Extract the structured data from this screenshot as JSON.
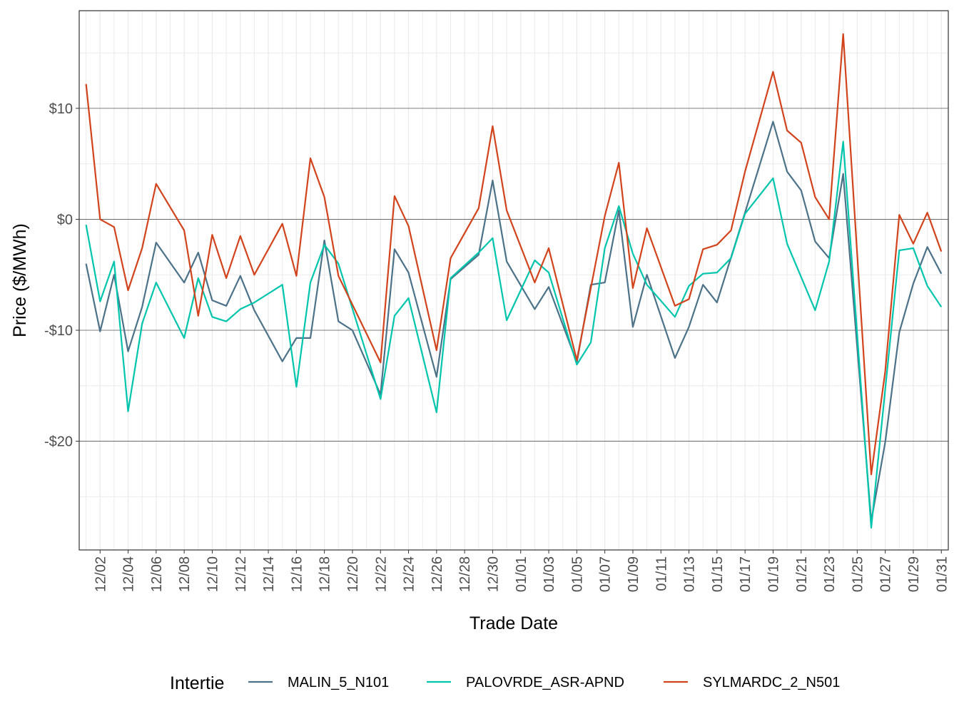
{
  "chart_data": {
    "type": "line",
    "xlabel": "Trade Date",
    "ylabel": "Price ($/MWh)",
    "ylim": [
      -29.8,
      18.8
    ],
    "y_ticks": [
      10,
      0,
      -10,
      -20
    ],
    "y_tick_labels": [
      "$10",
      "$0",
      "-$10",
      "-$20"
    ],
    "x_tick_labels": [
      "12/02",
      "12/04",
      "12/06",
      "12/08",
      "12/10",
      "12/12",
      "12/14",
      "12/16",
      "12/18",
      "12/20",
      "12/22",
      "12/24",
      "12/26",
      "12/28",
      "12/30",
      "01/01",
      "01/03",
      "01/05",
      "01/07",
      "01/09",
      "01/11",
      "01/13",
      "01/15",
      "01/17",
      "01/19",
      "01/21",
      "01/23",
      "01/25",
      "01/27",
      "01/29",
      "01/31"
    ],
    "grid": true,
    "legend_title": "Intertie",
    "legend_position": "bottom",
    "x": [
      "12/01",
      "12/02",
      "12/03",
      "12/04",
      "12/05",
      "12/06",
      "12/07",
      "12/08",
      "12/09",
      "12/10",
      "12/11",
      "12/12",
      "12/13",
      "12/14",
      "12/15",
      "12/16",
      "12/17",
      "12/18",
      "12/19",
      "12/20",
      "12/21",
      "12/22",
      "12/23",
      "12/24",
      "12/25",
      "12/26",
      "12/27",
      "12/28",
      "12/29",
      "12/30",
      "12/31",
      "01/01",
      "01/02",
      "01/03",
      "01/04",
      "01/05",
      "01/06",
      "01/07",
      "01/08",
      "01/09",
      "01/10",
      "01/11",
      "01/12",
      "01/13",
      "01/14",
      "01/15",
      "01/16",
      "01/17",
      "01/18",
      "01/19",
      "01/20",
      "01/21",
      "01/22",
      "01/23",
      "01/24",
      "01/25",
      "01/26",
      "01/27",
      "01/28",
      "01/29",
      "01/30",
      "01/31"
    ],
    "series": [
      {
        "name": "MALIN_5_N101",
        "color": "#4b7288",
        "values": [
          -4.0,
          -10.1,
          -5.0,
          -11.9,
          -7.9,
          -2.1,
          null,
          -5.7,
          -3.0,
          -7.3,
          -7.8,
          -5.1,
          -8.2,
          null,
          -12.8,
          -10.7,
          -10.7,
          -1.9,
          -9.2,
          -10.0,
          null,
          -15.8,
          -2.7,
          -4.8,
          null,
          -14.2,
          -5.4,
          null,
          -3.2,
          3.5,
          -3.8,
          null,
          -8.1,
          -6.1,
          null,
          -12.9,
          -5.9,
          -5.7,
          0.8,
          -9.7,
          -5.0,
          null,
          -12.5,
          -9.7,
          -5.9,
          -7.5,
          null,
          0.6,
          null,
          8.8,
          4.3,
          2.6,
          -2.0,
          -3.5,
          4.1,
          null,
          -27.2,
          -20.1,
          -10.2,
          -5.8,
          -2.5,
          -4.9
        ]
      },
      {
        "name": "PALOVRDE_ASR-APND",
        "color": "#00c5ad",
        "values": [
          -0.5,
          -7.4,
          -3.8,
          -17.3,
          -9.4,
          -5.7,
          null,
          -10.7,
          -5.3,
          -8.8,
          -9.2,
          -8.1,
          -7.5,
          null,
          -5.9,
          -15.1,
          -5.7,
          -2.3,
          -4.0,
          null,
          null,
          -16.2,
          -8.7,
          -7.1,
          null,
          -17.4,
          -5.3,
          null,
          -3.0,
          -1.7,
          -9.1,
          null,
          -3.7,
          -4.8,
          null,
          -13.1,
          -11.1,
          -2.6,
          1.2,
          -3.1,
          -5.9,
          null,
          -8.8,
          -6.0,
          -4.9,
          -4.8,
          -3.5,
          0.5,
          null,
          3.7,
          -2.2,
          null,
          -8.2,
          -3.8,
          7.0,
          null,
          -27.8,
          null,
          -2.8,
          -2.6,
          -6.0,
          -7.9
        ]
      },
      {
        "name": "SYLMARDC_2_N501",
        "color": "#d2431c",
        "values": [
          12.2,
          0.0,
          -0.7,
          -6.4,
          -2.6,
          3.2,
          null,
          -1.0,
          -8.7,
          -1.4,
          -5.3,
          -1.5,
          -5.0,
          null,
          -0.4,
          -5.1,
          5.5,
          2.0,
          -5.1,
          null,
          null,
          -12.9,
          2.1,
          -0.6,
          null,
          -11.8,
          -3.5,
          null,
          1.0,
          8.4,
          0.8,
          null,
          -5.7,
          -2.6,
          null,
          -12.7,
          null,
          0.3,
          5.1,
          -6.2,
          -0.8,
          null,
          -7.8,
          -7.2,
          -2.7,
          -2.3,
          -1.0,
          4.3,
          null,
          13.3,
          8.0,
          6.9,
          2.0,
          0.0,
          16.7,
          null,
          -23.0,
          -13.7,
          0.4,
          -2.2,
          0.6,
          -2.9
        ]
      }
    ]
  }
}
